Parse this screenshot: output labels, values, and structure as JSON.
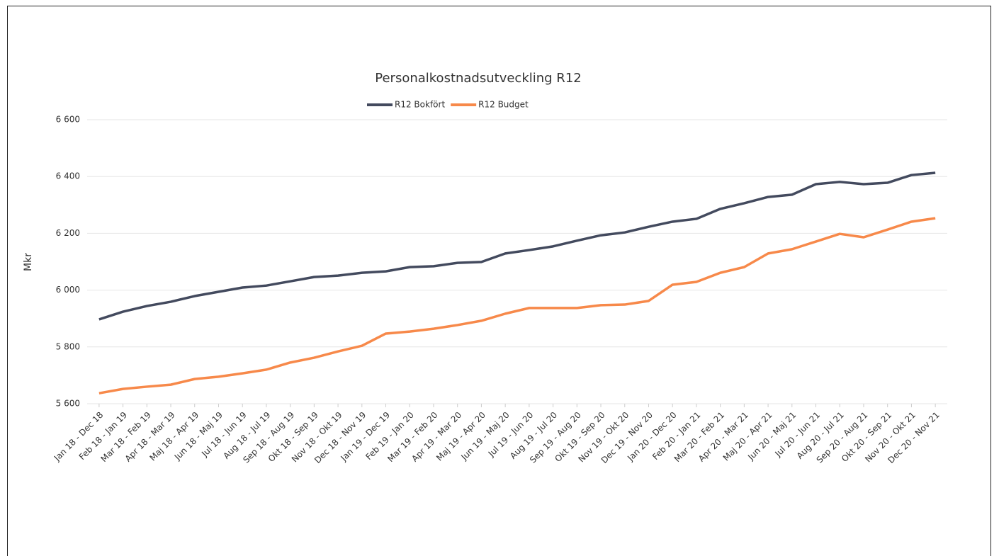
{
  "chart_data": {
    "type": "line",
    "title": "Personalkostnadsutveckling R12",
    "y_label": "Mkr",
    "categories": [
      "Jan 18 - Dec 18",
      "Feb 18 - Jan 19",
      "Mar 18 - Feb 19",
      "Apr 18 - Mar 19",
      "Maj 18 - Apr 19",
      "Jun 18 - Maj 19",
      "Jul 18 - Jun 19",
      "Aug 18 - Jul 19",
      "Sep 18 - Aug 19",
      "Okt 18 - Sep 19",
      "Nov 18 - Okt 19",
      "Dec 18 - Nov 19",
      "Jan 19 - Dec 19",
      "Feb 19 - Jan 20",
      "Mar 19 - Feb 20",
      "Apr 19 - Mar 20",
      "Maj 19 - Apr 20",
      "Jun 19 - Maj 20",
      "Jul 19 - Jun 20",
      "Aug 19 - Jul 20",
      "Sep 19 - Aug 20",
      "Okt 19 - Sep 20",
      "Nov 19 - Okt 20",
      "Dec 19 - Nov 20",
      "Jan 20 - Dec 20",
      "Feb 20 - Jan 21",
      "Mar 20 - Feb 21",
      "Apr 20 - Mar 21",
      "Maj 20 - Apr 21",
      "Jun 20 - Maj 21",
      "Jul 20 - Jun 21",
      "Aug 20 - Jul 21",
      "Sep 20 - Aug 21",
      "Okt 20 - Sep 21",
      "Nov 20 - Okt 21",
      "Dec 20 - Nov 21"
    ],
    "series": [
      {
        "name": "R12 Bokfört",
        "color": "#434a5e",
        "values": [
          5897,
          5924,
          5944,
          5959,
          5979,
          5994,
          6009,
          6016,
          6031,
          6046,
          6051,
          6061,
          6066,
          6081,
          6084,
          6096,
          6099,
          6129,
          6141,
          6154,
          6174,
          6193,
          6203,
          6223,
          6241,
          6251,
          6286,
          6306,
          6328,
          6336,
          6373,
          6381,
          6373,
          6378,
          6405,
          6413
        ]
      },
      {
        "name": "R12 Budget",
        "color": "#f7894a",
        "values": [
          5637,
          5652,
          5660,
          5667,
          5687,
          5695,
          5707,
          5720,
          5745,
          5762,
          5784,
          5804,
          5847,
          5854,
          5864,
          5877,
          5892,
          5917,
          5937,
          5937,
          5937,
          5947,
          5949,
          5962,
          6019,
          6029,
          6061,
          6081,
          6129,
          6144,
          6171,
          6198,
          6186,
          6213,
          6241,
          6253
        ]
      }
    ],
    "ylim": [
      5600,
      6600
    ],
    "yticks": [
      {
        "value": 5600,
        "label": "5 600"
      },
      {
        "value": 5800,
        "label": "5 800"
      },
      {
        "value": 6000,
        "label": "6 000"
      },
      {
        "value": 6200,
        "label": "6 200"
      },
      {
        "value": 6400,
        "label": "6 400"
      },
      {
        "value": 6600,
        "label": "6 600"
      }
    ],
    "grid": true,
    "legend": "top"
  }
}
